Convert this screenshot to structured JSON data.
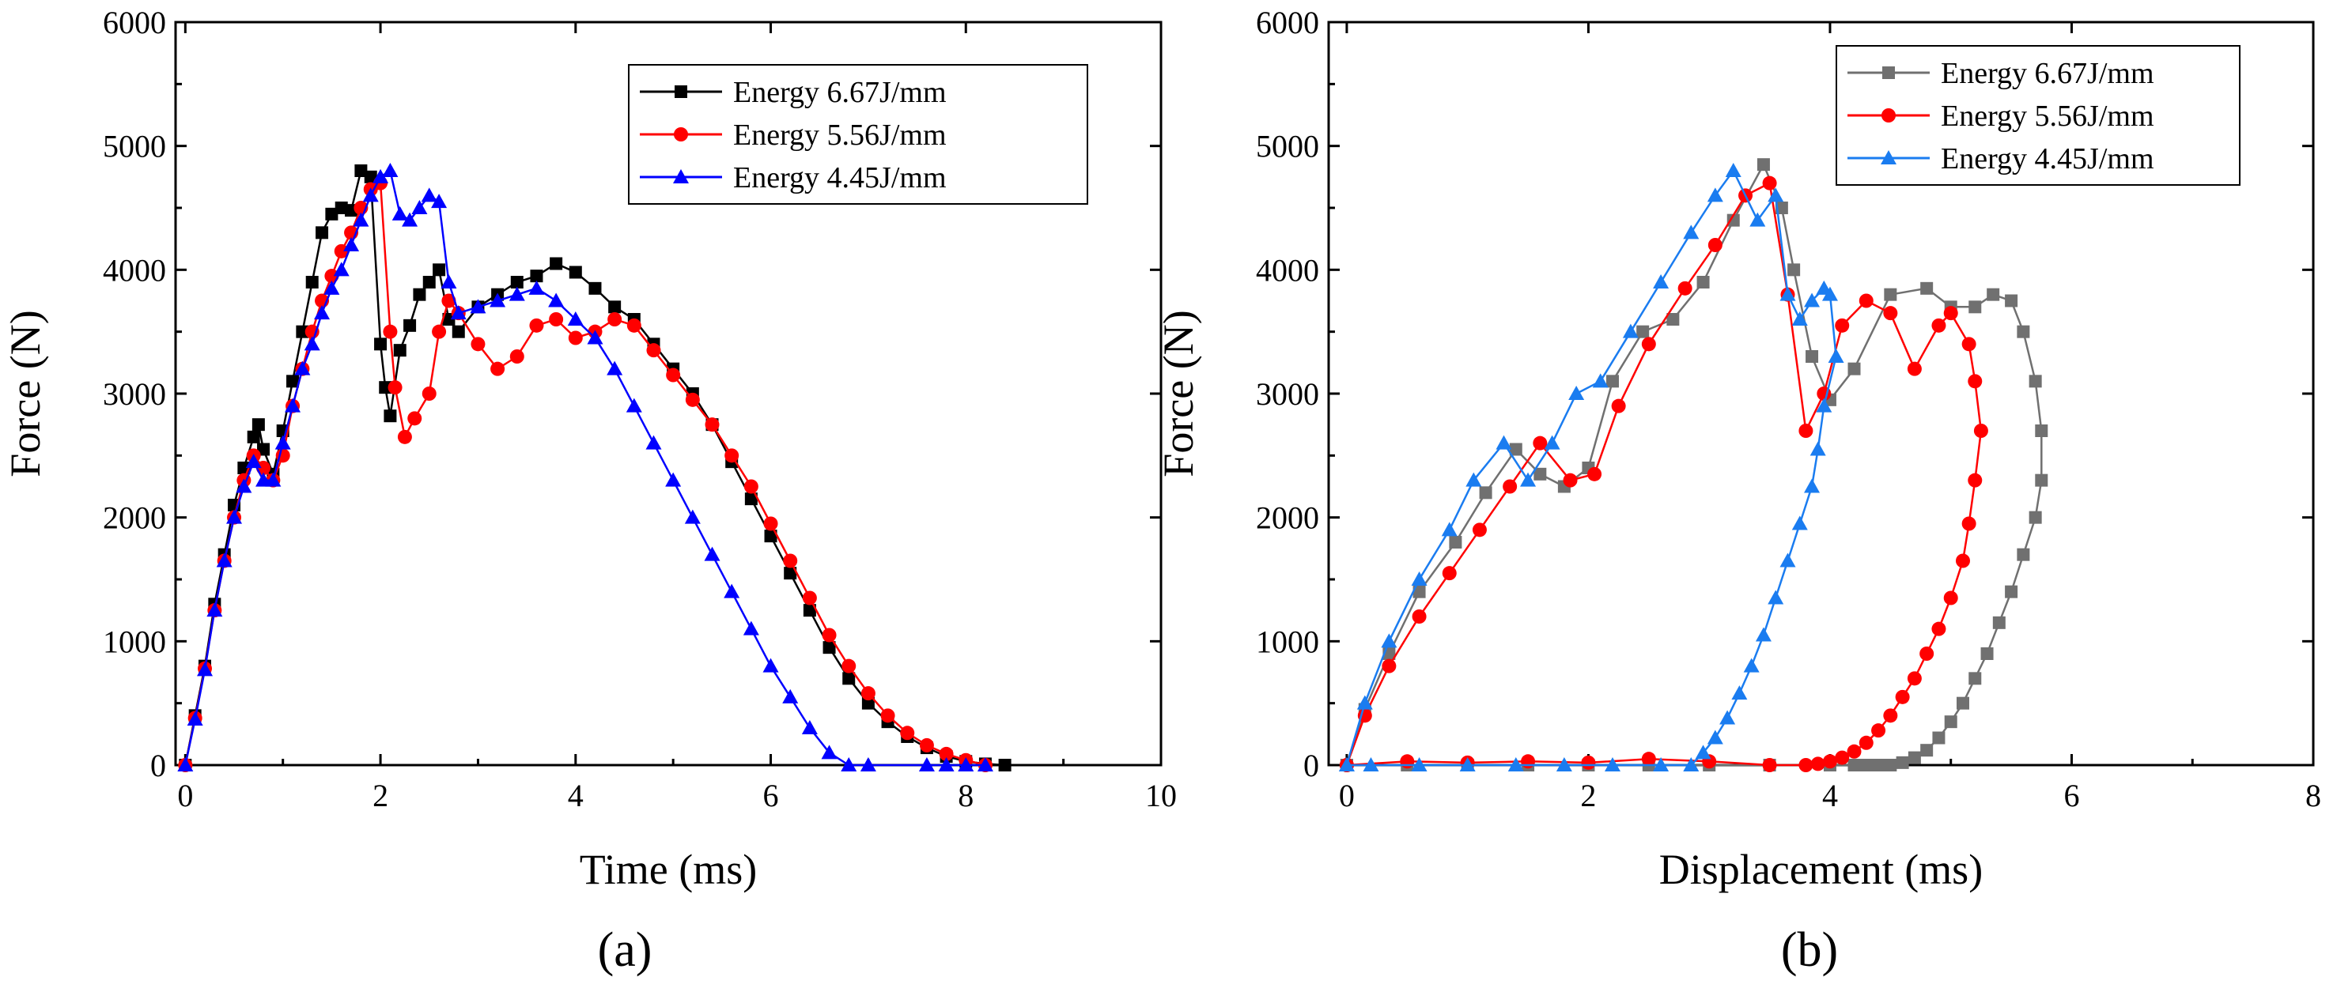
{
  "chart_data": [
    {
      "type": "line",
      "panel_label": "(a)",
      "xlabel": "Time (ms)",
      "ylabel": "Force (N)",
      "xlim": [
        -0.1,
        10
      ],
      "ylim": [
        0,
        6000
      ],
      "xticks": [
        0,
        2,
        4,
        6,
        8,
        10
      ],
      "yticks": [
        0,
        1000,
        2000,
        3000,
        4000,
        5000,
        6000
      ],
      "xtick_labels": [
        "0",
        "2",
        "4",
        "6",
        "8",
        "10"
      ],
      "ytick_labels": [
        "0",
        "1000",
        "2000",
        "3000",
        "4000",
        "5000",
        "6000"
      ],
      "grid": false,
      "legend_position": "top-right",
      "series": [
        {
          "name": "Energy 6.67J/mm",
          "color": "#000000",
          "marker": "square",
          "x": [
            0,
            0.1,
            0.2,
            0.3,
            0.4,
            0.5,
            0.6,
            0.7,
            0.75,
            0.8,
            0.9,
            1.0,
            1.1,
            1.2,
            1.3,
            1.4,
            1.5,
            1.6,
            1.7,
            1.8,
            1.9,
            2.0,
            2.05,
            2.1,
            2.2,
            2.3,
            2.4,
            2.5,
            2.6,
            2.7,
            2.8,
            3.0,
            3.2,
            3.4,
            3.6,
            3.8,
            4.0,
            4.2,
            4.4,
            4.6,
            4.8,
            5.0,
            5.2,
            5.4,
            5.6,
            5.8,
            6.0,
            6.2,
            6.4,
            6.6,
            6.8,
            7.0,
            7.2,
            7.4,
            7.6,
            7.8,
            8.0,
            8.2,
            8.4
          ],
          "values": [
            0,
            400,
            800,
            1300,
            1700,
            2100,
            2400,
            2650,
            2750,
            2550,
            2350,
            2700,
            3100,
            3500,
            3900,
            4300,
            4450,
            4500,
            4480,
            4800,
            4750,
            3400,
            3050,
            2820,
            3350,
            3550,
            3800,
            3900,
            4000,
            3600,
            3500,
            3700,
            3800,
            3900,
            3950,
            4050,
            3980,
            3850,
            3700,
            3600,
            3400,
            3200,
            3000,
            2750,
            2450,
            2150,
            1850,
            1550,
            1250,
            950,
            700,
            500,
            350,
            230,
            140,
            70,
            30,
            10,
            0
          ]
        },
        {
          "name": "Energy 5.56J/mm",
          "color": "#ff0000",
          "marker": "circle",
          "x": [
            0,
            0.1,
            0.2,
            0.3,
            0.4,
            0.5,
            0.6,
            0.7,
            0.8,
            0.9,
            1.0,
            1.1,
            1.2,
            1.3,
            1.4,
            1.5,
            1.6,
            1.7,
            1.8,
            1.9,
            2.0,
            2.1,
            2.15,
            2.25,
            2.35,
            2.5,
            2.6,
            2.7,
            2.8,
            3.0,
            3.2,
            3.4,
            3.6,
            3.8,
            4.0,
            4.2,
            4.4,
            4.6,
            4.8,
            5.0,
            5.2,
            5.4,
            5.6,
            5.8,
            6.0,
            6.2,
            6.4,
            6.6,
            6.8,
            7.0,
            7.2,
            7.4,
            7.6,
            7.8,
            8.0,
            8.2
          ],
          "values": [
            0,
            380,
            780,
            1250,
            1650,
            2000,
            2300,
            2500,
            2400,
            2300,
            2500,
            2900,
            3200,
            3500,
            3750,
            3950,
            4150,
            4300,
            4500,
            4650,
            4700,
            3500,
            3050,
            2650,
            2800,
            3000,
            3500,
            3750,
            3650,
            3400,
            3200,
            3300,
            3550,
            3600,
            3450,
            3500,
            3600,
            3550,
            3350,
            3150,
            2950,
            2750,
            2500,
            2250,
            1950,
            1650,
            1350,
            1050,
            800,
            580,
            400,
            260,
            160,
            90,
            40,
            0
          ]
        },
        {
          "name": "Energy 4.45J/mm",
          "color": "#0000ff",
          "marker": "triangle",
          "x": [
            0,
            0.1,
            0.2,
            0.3,
            0.4,
            0.5,
            0.6,
            0.7,
            0.8,
            0.9,
            1.0,
            1.1,
            1.2,
            1.3,
            1.4,
            1.5,
            1.6,
            1.7,
            1.8,
            1.9,
            2.0,
            2.1,
            2.2,
            2.3,
            2.4,
            2.5,
            2.6,
            2.7,
            2.8,
            3.0,
            3.2,
            3.4,
            3.6,
            3.8,
            4.0,
            4.2,
            4.4,
            4.6,
            4.8,
            5.0,
            5.2,
            5.4,
            5.6,
            5.8,
            6.0,
            6.2,
            6.4,
            6.6,
            6.8,
            7.0,
            7.6,
            7.8,
            8.0,
            8.2
          ],
          "values": [
            0,
            370,
            770,
            1250,
            1650,
            2000,
            2250,
            2450,
            2300,
            2300,
            2600,
            2900,
            3200,
            3400,
            3650,
            3850,
            4000,
            4200,
            4400,
            4600,
            4750,
            4800,
            4450,
            4400,
            4500,
            4600,
            4550,
            3900,
            3650,
            3700,
            3750,
            3800,
            3850,
            3750,
            3600,
            3450,
            3200,
            2900,
            2600,
            2300,
            2000,
            1700,
            1400,
            1100,
            800,
            550,
            300,
            100,
            0,
            0,
            0,
            0,
            0,
            0
          ]
        }
      ]
    },
    {
      "type": "line",
      "panel_label": "(b)",
      "xlabel": "Displacement (ms)",
      "ylabel": "Force (N)",
      "xlim": [
        -0.15,
        8
      ],
      "ylim": [
        0,
        6000
      ],
      "xticks": [
        0,
        2,
        4,
        6,
        8
      ],
      "yticks": [
        0,
        1000,
        2000,
        3000,
        4000,
        5000,
        6000
      ],
      "xtick_labels": [
        "0",
        "2",
        "4",
        "6",
        "8"
      ],
      "ytick_labels": [
        "0",
        "1000",
        "2000",
        "3000",
        "4000",
        "5000",
        "6000"
      ],
      "grid": false,
      "legend_position": "top-right",
      "series": [
        {
          "name": "Energy 6.67J/mm",
          "color": "#707070",
          "marker": "square",
          "x": [
            0,
            0.15,
            0.35,
            0.6,
            0.9,
            1.15,
            1.4,
            1.6,
            1.8,
            2.0,
            2.2,
            2.45,
            2.7,
            2.95,
            3.2,
            3.45,
            3.6,
            3.7,
            3.85,
            4.0,
            4.2,
            4.5,
            4.8,
            5.0,
            5.2,
            5.35,
            5.5,
            5.6,
            5.7,
            5.75,
            5.75,
            5.7,
            5.6,
            5.5,
            5.4,
            5.3,
            5.2,
            5.1,
            5.0,
            4.9,
            4.8,
            4.7,
            4.6,
            4.5,
            4.4,
            4.3,
            4.2,
            4.0,
            3.5,
            3.0,
            2.5,
            2.0,
            1.5,
            1.0,
            0.5,
            0
          ],
          "values": [
            0,
            450,
            900,
            1400,
            1800,
            2200,
            2550,
            2350,
            2250,
            2400,
            3100,
            3500,
            3600,
            3900,
            4400,
            4850,
            4500,
            4000,
            3300,
            2950,
            3200,
            3800,
            3850,
            3700,
            3700,
            3800,
            3750,
            3500,
            3100,
            2700,
            2300,
            2000,
            1700,
            1400,
            1150,
            900,
            700,
            500,
            350,
            220,
            120,
            60,
            20,
            0,
            0,
            0,
            0,
            0,
            0,
            0,
            0,
            0,
            0,
            0,
            0,
            0
          ]
        },
        {
          "name": "Energy 5.56J/mm",
          "color": "#ff0000",
          "marker": "circle",
          "x": [
            0,
            0.15,
            0.35,
            0.6,
            0.85,
            1.1,
            1.35,
            1.6,
            1.85,
            2.05,
            2.25,
            2.5,
            2.8,
            3.05,
            3.3,
            3.5,
            3.65,
            3.8,
            3.95,
            4.1,
            4.3,
            4.5,
            4.7,
            4.9,
            5.0,
            5.15,
            5.2,
            5.25,
            5.2,
            5.15,
            5.1,
            5.0,
            4.9,
            4.8,
            4.7,
            4.6,
            4.5,
            4.4,
            4.3,
            4.2,
            4.1,
            4.0,
            3.9,
            3.8,
            3.5,
            3.0,
            2.5,
            2.0,
            1.5,
            1.0,
            0.5,
            0
          ],
          "values": [
            0,
            400,
            800,
            1200,
            1550,
            1900,
            2250,
            2600,
            2300,
            2350,
            2900,
            3400,
            3850,
            4200,
            4600,
            4700,
            3800,
            2700,
            3000,
            3550,
            3750,
            3650,
            3200,
            3550,
            3650,
            3400,
            3100,
            2700,
            2300,
            1950,
            1650,
            1350,
            1100,
            900,
            700,
            550,
            400,
            280,
            180,
            110,
            60,
            30,
            10,
            0,
            0,
            30,
            50,
            20,
            30,
            20,
            30,
            0
          ]
        },
        {
          "name": "Energy 4.45J/mm",
          "color": "#1a7cf0",
          "marker": "triangle",
          "x": [
            0,
            0.15,
            0.35,
            0.6,
            0.85,
            1.05,
            1.3,
            1.5,
            1.7,
            1.9,
            2.1,
            2.35,
            2.6,
            2.85,
            3.05,
            3.2,
            3.4,
            3.55,
            3.65,
            3.75,
            3.85,
            3.95,
            4.0,
            4.05,
            3.95,
            3.9,
            3.85,
            3.75,
            3.65,
            3.55,
            3.45,
            3.35,
            3.25,
            3.15,
            3.05,
            2.95,
            2.85,
            2.6,
            2.2,
            1.8,
            1.4,
            1.0,
            0.6,
            0.2,
            0
          ],
          "values": [
            0,
            500,
            1000,
            1500,
            1900,
            2300,
            2600,
            2300,
            2600,
            3000,
            3100,
            3500,
            3900,
            4300,
            4600,
            4800,
            4400,
            4600,
            3800,
            3600,
            3750,
            3850,
            3800,
            3300,
            2900,
            2550,
            2250,
            1950,
            1650,
            1350,
            1050,
            800,
            580,
            380,
            220,
            100,
            0,
            0,
            0,
            0,
            0,
            0,
            0,
            0,
            0
          ]
        }
      ]
    }
  ]
}
